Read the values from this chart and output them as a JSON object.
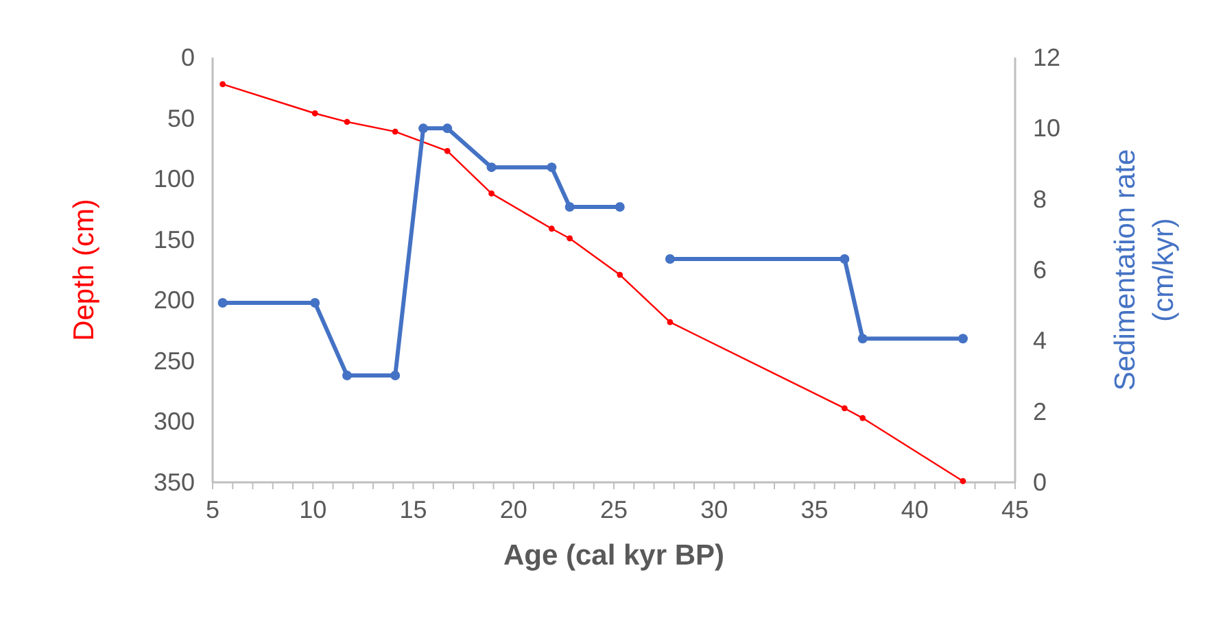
{
  "chart_data": {
    "type": "line",
    "xlabel": "Age (cal kyr BP)",
    "ylabel": "Depth (cm)",
    "y2label": "Sedimentation rate (cm/kyr)",
    "xlim": [
      5,
      45
    ],
    "xticks": [
      5,
      {
        "value": 6,
        "label": null
      },
      {
        "value": 7,
        "label": null
      },
      {
        "value": 8,
        "label": null
      },
      {
        "value": 9,
        "label": null
      },
      10,
      {
        "value": 11,
        "label": null
      },
      {
        "value": 12,
        "label": null
      },
      {
        "value": 13,
        "label": null
      },
      {
        "value": 14,
        "label": null
      },
      15,
      {
        "value": 16,
        "label": null
      },
      {
        "value": 17,
        "label": null
      },
      {
        "value": 18,
        "label": null
      },
      {
        "value": 19,
        "label": null
      },
      20,
      {
        "value": 21,
        "label": null
      },
      {
        "value": 22,
        "label": null
      },
      {
        "value": 23,
        "label": null
      },
      {
        "value": 24,
        "label": null
      },
      25,
      {
        "value": 26,
        "label": null
      },
      {
        "value": 27,
        "label": null
      },
      {
        "value": 28,
        "label": null
      },
      {
        "value": 29,
        "label": null
      },
      30,
      {
        "value": 31,
        "label": null
      },
      {
        "value": 32,
        "label": null
      },
      {
        "value": 33,
        "label": null
      },
      {
        "value": 34,
        "label": null
      },
      35,
      {
        "value": 36,
        "label": null
      },
      {
        "value": 37,
        "label": null
      },
      {
        "value": 38,
        "label": null
      },
      {
        "value": 39,
        "label": null
      },
      40,
      {
        "value": 41,
        "label": null
      },
      {
        "value": 42,
        "label": null
      },
      {
        "value": 43,
        "label": null
      },
      {
        "value": 44,
        "label": null
      },
      45
    ],
    "ylim": [
      350,
      0
    ],
    "yticks": [
      0,
      50,
      100,
      150,
      200,
      250,
      300,
      350
    ],
    "y2lim": [
      0,
      12
    ],
    "y2ticks": [
      0,
      2,
      4,
      6,
      8,
      10,
      12
    ],
    "grid": false,
    "marker": "circle",
    "series": [
      {
        "color": "#ff0000",
        "x": [
          5.5,
          10.1,
          11.7,
          14.1,
          16.7,
          18.9,
          21.9,
          22.8,
          25.3,
          27.8,
          36.5,
          37.4,
          42.4
        ],
        "values": [
          22,
          46,
          53,
          61,
          77,
          112,
          141,
          149,
          179,
          218,
          289,
          297,
          349
        ]
      },
      {
        "color": "#4472c4",
        "axis": "y2",
        "x": [
          5.5,
          10.1,
          11.7,
          14.1,
          15.5,
          16.7,
          18.9,
          21.9,
          22.8,
          25.3,
          26.5,
          27.8,
          36.5,
          37.4,
          42.4
        ],
        "values": [
          5.07,
          5.07,
          3.02,
          3.02,
          10,
          10,
          8.9,
          8.9,
          7.78,
          7.78,
          null,
          6.31,
          6.31,
          4.06,
          4.06
        ]
      }
    ]
  }
}
